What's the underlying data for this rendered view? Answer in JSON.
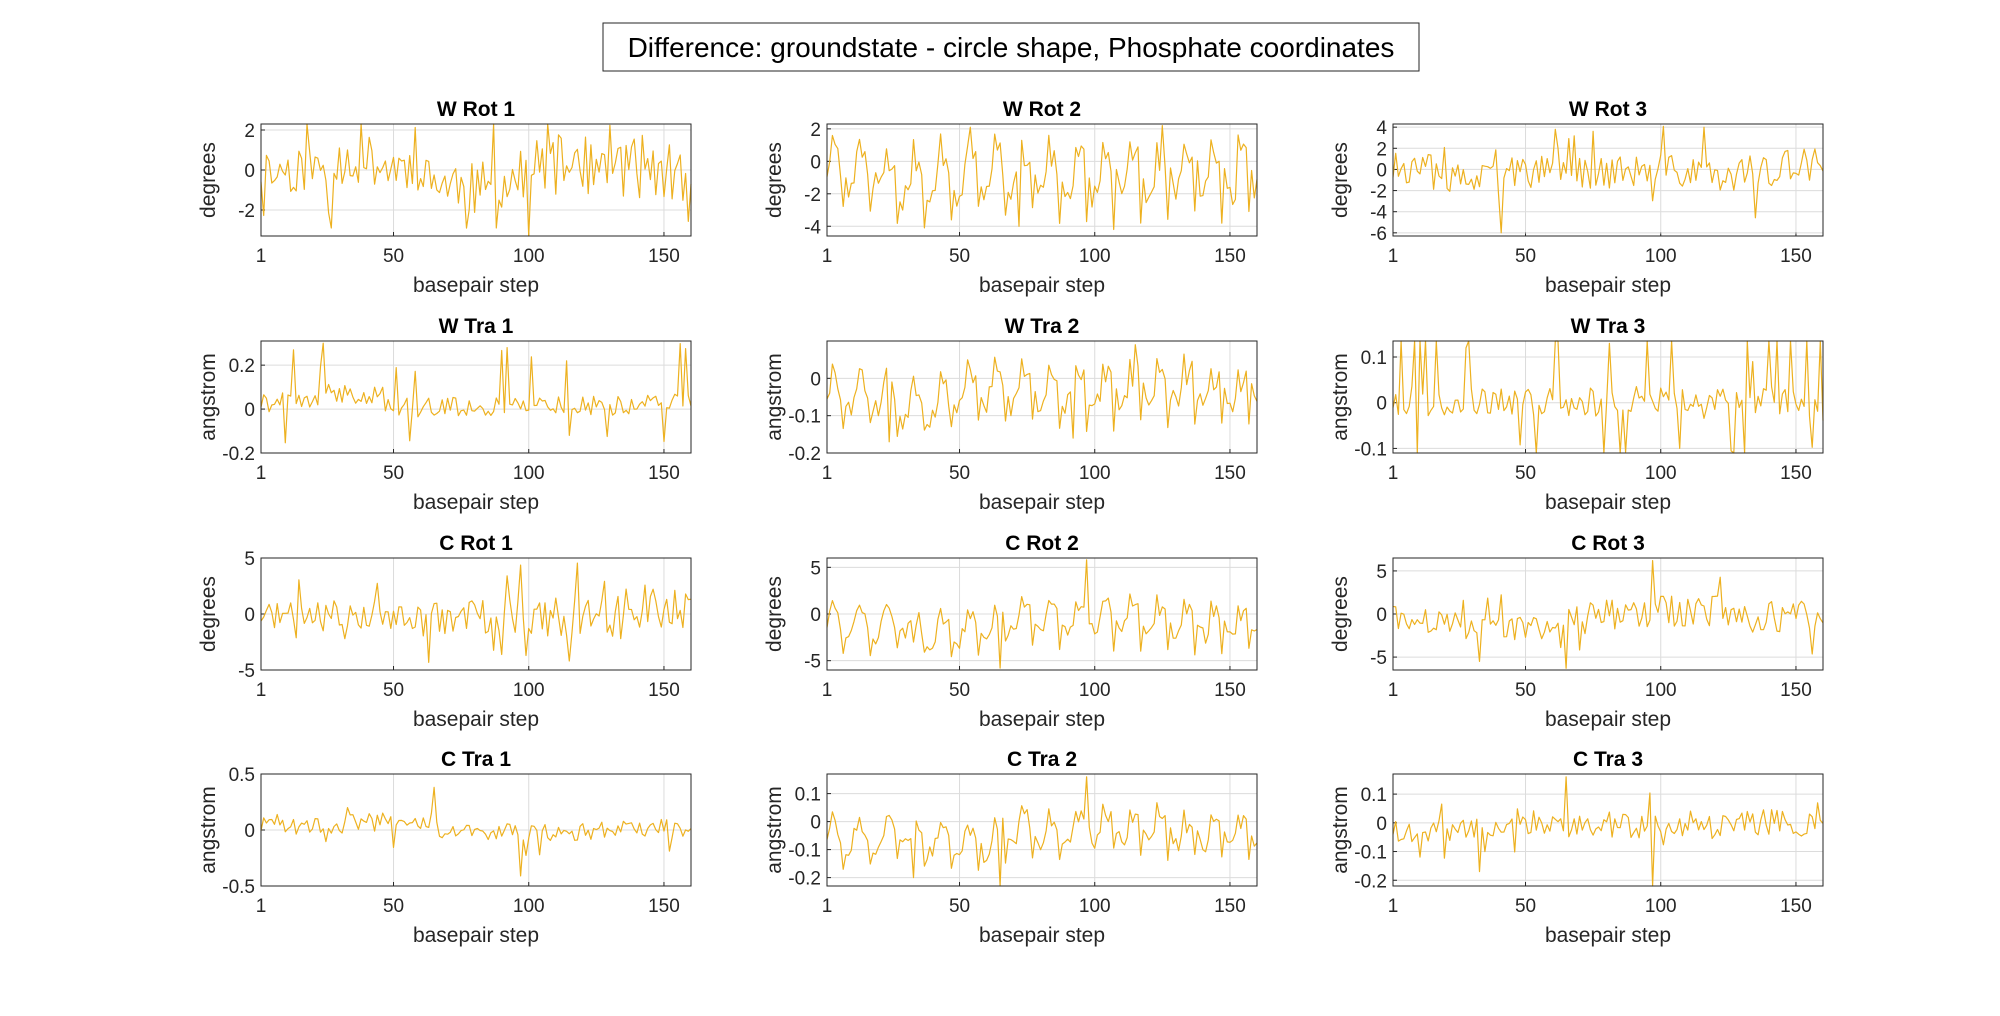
{
  "figure": {
    "title": "Difference: groundstate - circle shape, Phosphate coordinates",
    "line_color": "#EDB120",
    "grid": true
  },
  "chart_data": [
    {
      "type": "line",
      "title": "W Rot 1",
      "xlabel": "basepair step",
      "ylabel": "degrees",
      "xlim": [
        1,
        160
      ],
      "ylim": [
        -3.3,
        2.3
      ],
      "xticks": [
        1,
        50,
        100,
        150
      ],
      "yticks": [
        -2,
        0,
        2
      ],
      "amp": 1.2,
      "seed": 11,
      "pattern": "noise",
      "drift": 0.6,
      "y": [
        0.4,
        -0.6,
        1.1,
        2.1,
        -1.0,
        -3.3,
        -2.9,
        0.0,
        1.4,
        2.3,
        -1.6,
        -2.8
      ]
    },
    {
      "type": "line",
      "title": "W Rot 2",
      "xlabel": "basepair step",
      "ylabel": "degrees",
      "xlim": [
        1,
        160
      ],
      "ylim": [
        -4.6,
        2.3
      ],
      "xticks": [
        1,
        50,
        100,
        150
      ],
      "yticks": [
        -4,
        -2,
        0,
        2
      ],
      "amp": 1.4,
      "seed": 23,
      "pattern": "periodic",
      "drift": 0.2,
      "y": [
        1.0,
        -0.7,
        -3.9,
        2.1,
        -4.0,
        1.7,
        -4.2,
        2.2,
        -3.0,
        0.5
      ]
    },
    {
      "type": "line",
      "title": "W Rot 3",
      "xlabel": "basepair step",
      "ylabel": "degrees",
      "xlim": [
        1,
        160
      ],
      "ylim": [
        -6.3,
        4.3
      ],
      "xticks": [
        1,
        50,
        100,
        150
      ],
      "yticks": [
        -6,
        -4,
        -2,
        0,
        2,
        4
      ],
      "amp": 1.6,
      "seed": 37,
      "pattern": "noise",
      "drift": 0.2,
      "y": [
        1.5,
        -1.8,
        -6.0,
        3.8,
        -5.7,
        4.0,
        -5.4,
        2.9,
        -1.2
      ]
    },
    {
      "type": "line",
      "title": "W Tra 1",
      "xlabel": "basepair step",
      "ylabel": "angstrom",
      "xlim": [
        1,
        160
      ],
      "ylim": [
        -0.2,
        0.31
      ],
      "xticks": [
        1,
        50,
        100,
        150
      ],
      "yticks": [
        -0.2,
        0,
        0.2
      ],
      "amp": 0.08,
      "seed": 41,
      "pattern": "spiky",
      "drift": 0.0,
      "y": [
        -0.05,
        0.3,
        0.26,
        -0.2,
        0.28,
        -0.12,
        0.24,
        0.0
      ]
    },
    {
      "type": "line",
      "title": "W Tra 2",
      "xlabel": "basepair step",
      "ylabel": "angstrom",
      "xlim": [
        1,
        160
      ],
      "ylim": [
        -0.2,
        0.1
      ],
      "xticks": [
        1,
        50,
        100,
        150
      ],
      "yticks": [
        -0.2,
        -0.1,
        0
      ],
      "amp": 0.05,
      "seed": 53,
      "pattern": "periodic",
      "drift": 0.0,
      "y": [
        0.0,
        -0.17,
        -0.19,
        0.1,
        -0.16,
        0.09,
        -0.12,
        -0.03
      ]
    },
    {
      "type": "line",
      "title": "W Tra 3",
      "xlabel": "basepair step",
      "ylabel": "angstrom",
      "xlim": [
        1,
        160
      ],
      "ylim": [
        -0.11,
        0.135
      ],
      "xticks": [
        1,
        50,
        100,
        150
      ],
      "yticks": [
        -0.1,
        0,
        0.1
      ],
      "amp": 0.06,
      "seed": 67,
      "pattern": "spiky",
      "drift": 0.0,
      "y": [
        -0.08,
        0.12,
        -0.11,
        0.13,
        -0.1,
        0.09,
        -0.07
      ]
    },
    {
      "type": "line",
      "title": "C Rot 1",
      "xlabel": "basepair step",
      "ylabel": "degrees",
      "xlim": [
        1,
        160
      ],
      "ylim": [
        -5,
        5
      ],
      "xticks": [
        1,
        50,
        100,
        150
      ],
      "yticks": [
        -5,
        0,
        5
      ],
      "amp": 1.2,
      "seed": 71,
      "pattern": "noise",
      "drift": 1.0,
      "y": [
        0.5,
        -1.5,
        1.8,
        -4.7,
        3.4,
        -4.2,
        2.1,
        0.7
      ]
    },
    {
      "type": "line",
      "title": "C Rot 2",
      "xlabel": "basepair step",
      "ylabel": "degrees",
      "xlim": [
        1,
        160
      ],
      "ylim": [
        -6,
        6
      ],
      "xticks": [
        1,
        50,
        100,
        150
      ],
      "yticks": [
        -5,
        0,
        5
      ],
      "amp": 1.5,
      "seed": 83,
      "pattern": "periodic",
      "drift": 0.6,
      "y": [
        -0.5,
        -3.0,
        -5.8,
        5.8,
        -4.6,
        1.2
      ]
    },
    {
      "type": "line",
      "title": "C Rot 3",
      "xlabel": "basepair step",
      "ylabel": "degrees",
      "xlim": [
        1,
        160
      ],
      "ylim": [
        -6.5,
        6.5
      ],
      "xticks": [
        1,
        50,
        100,
        150
      ],
      "yticks": [
        -5,
        0,
        5
      ],
      "amp": 1.4,
      "seed": 97,
      "pattern": "noise",
      "drift": 0.6,
      "y": [
        -1.0,
        -5.5,
        -6.3,
        6.2,
        -4.2,
        2.0
      ]
    },
    {
      "type": "line",
      "title": "C Tra 1",
      "xlabel": "basepair step",
      "ylabel": "angstrom",
      "xlim": [
        1,
        160
      ],
      "ylim": [
        -0.5,
        0.5
      ],
      "xticks": [
        1,
        50,
        100,
        150
      ],
      "yticks": [
        -0.5,
        0,
        0.5
      ],
      "amp": 0.09,
      "seed": 101,
      "pattern": "noise",
      "drift": 0.05,
      "y": [
        0.05,
        0.2,
        0.38,
        -0.41,
        0.3,
        -0.08
      ]
    },
    {
      "type": "line",
      "title": "C Tra 2",
      "xlabel": "basepair step",
      "ylabel": "angstrom",
      "xlim": [
        1,
        160
      ],
      "ylim": [
        -0.23,
        0.17
      ],
      "xticks": [
        1,
        50,
        100,
        150
      ],
      "yticks": [
        -0.2,
        -0.1,
        0,
        0.1
      ],
      "amp": 0.05,
      "seed": 113,
      "pattern": "periodic",
      "drift": 0.0,
      "y": [
        -0.05,
        -0.2,
        -0.23,
        0.16,
        -0.18,
        0.0
      ]
    },
    {
      "type": "line",
      "title": "C Tra 3",
      "xlabel": "basepair step",
      "ylabel": "angstrom",
      "xlim": [
        1,
        160
      ],
      "ylim": [
        -0.22,
        0.17
      ],
      "xticks": [
        1,
        50,
        100,
        150
      ],
      "yticks": [
        -0.2,
        -0.1,
        0,
        0.1
      ],
      "amp": 0.05,
      "seed": 127,
      "pattern": "noise",
      "drift": 0.0,
      "y": [
        0.0,
        -0.17,
        0.16,
        -0.22,
        0.1,
        -0.08
      ]
    }
  ]
}
